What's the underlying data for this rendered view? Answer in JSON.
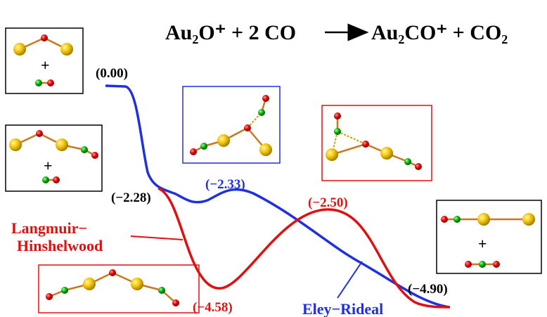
{
  "equation": {
    "reactants": "Au₂O⁺ + 2 CO",
    "products": "Au₂CO⁺ + CO₂"
  },
  "plus": "+",
  "energies": [
    "(0.00)",
    "(−2.28)",
    "(−2.33)",
    "(−2.50)",
    "(−4.58)",
    "(−4.90)"
  ],
  "mechanisms": {
    "langmuir_hinshelwood": [
      "Langmuir−",
      "Hinshelwood"
    ],
    "eley_rideal": "Eley−Rideal"
  }
}
